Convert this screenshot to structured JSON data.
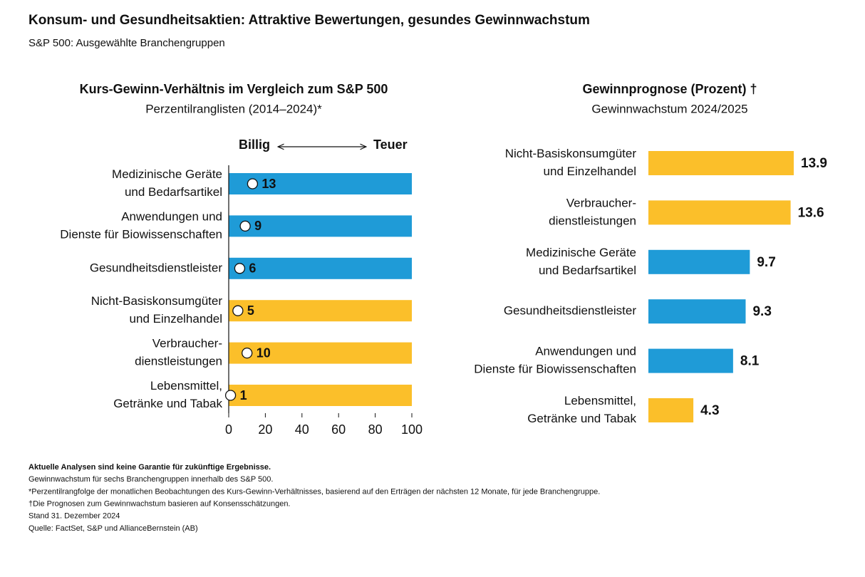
{
  "title": "Konsum- und Gesundheitsaktien: Attraktive Bewertungen, gesundes Gewinnwachstum",
  "subtitle": "S&P 500: Ausgewählte Branchengruppen",
  "footnotes": [
    "Aktuelle Analysen sind keine Garantie für zukünftige Ergebnisse.",
    "Gewinnwachstum für sechs Branchengruppen innerhalb des S&P 500.",
    "*Perzentilrangfolge der monatlichen Beobachtungen des Kurs-Gewinn-Verhältnisses, basierend auf den Erträgen der nächsten 12 Monate, für jede Branchengruppe.",
    "†Die Prognosen zum Gewinnwachstum basieren auf Konsensschätzungen.",
    "Stand 31. Dezember 2024",
    "Quelle: FactSet, S&P und AllianceBernstein (AB)"
  ],
  "chart_data": [
    {
      "type": "dot",
      "title": "Kurs-Gewinn-Verhältnis im Vergleich zum S&P 500",
      "subtitle": "Perzentilranglisten (2014–2024)*",
      "low_label": "Billig",
      "high_label": "Teuer",
      "categories": [
        [
          "Medizinische Geräte",
          "und Bedarfsartikel"
        ],
        [
          "Anwendungen und",
          "Dienste für Biowissenschaften"
        ],
        [
          "Gesundheitsdienstleister"
        ],
        [
          "Nicht-Basiskonsumgüter",
          "und Einzelhandel"
        ],
        [
          "Verbraucher-",
          "dienstleistungen"
        ],
        [
          "Lebensmittel,",
          "Getränke und Tabak"
        ]
      ],
      "values": [
        13,
        9,
        6,
        5,
        10,
        1
      ],
      "colors": [
        "#1f9bd7",
        "#1f9bd7",
        "#1f9bd7",
        "#fbbf2a",
        "#fbbf2a",
        "#fbbf2a"
      ],
      "xlim": [
        0,
        100
      ],
      "xticks": [
        0,
        20,
        40,
        60,
        80,
        100
      ]
    },
    {
      "type": "bar",
      "title": "Gewinnprognose (Prozent) †",
      "subtitle": "Gewinnwachstum 2024/2025",
      "categories": [
        [
          "Nicht-Basiskonsumgüter",
          "und Einzelhandel"
        ],
        [
          "Verbraucher-",
          "dienstleistungen"
        ],
        [
          "Medizinische Geräte",
          "und Bedarfsartikel"
        ],
        [
          "Gesundheitsdienstleister"
        ],
        [
          "Anwendungen und",
          "Dienste für Biowissenschaften"
        ],
        [
          "Lebensmittel,",
          "Getränke und Tabak"
        ]
      ],
      "values": [
        13.9,
        13.6,
        9.7,
        9.3,
        8.1,
        4.3
      ],
      "colors": [
        "#fbbf2a",
        "#fbbf2a",
        "#1f9bd7",
        "#1f9bd7",
        "#1f9bd7",
        "#fbbf2a"
      ]
    }
  ]
}
